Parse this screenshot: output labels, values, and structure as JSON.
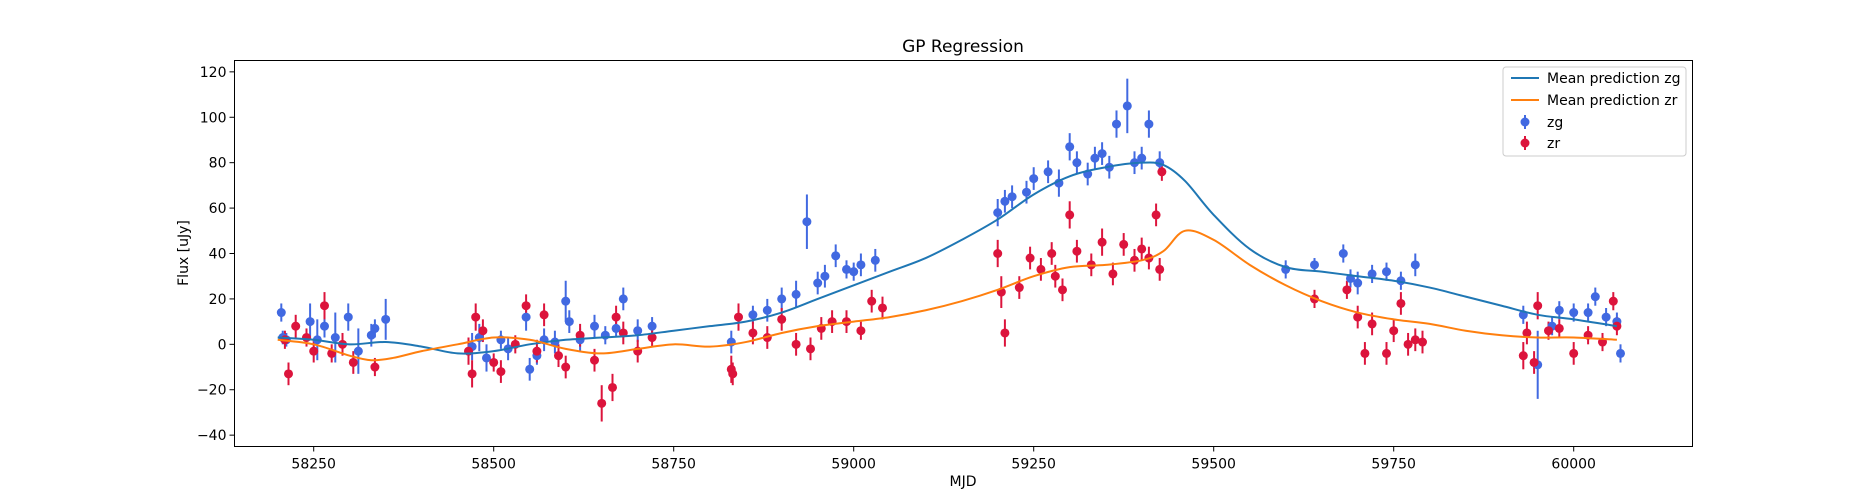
{
  "chart_data": {
    "type": "scatter",
    "title": "GP Regression",
    "xlabel": "MJD",
    "ylabel": "Flux [uJy]",
    "xlim": [
      58140,
      60165
    ],
    "ylim": [
      -45,
      125
    ],
    "xticks": [
      58250,
      58500,
      58750,
      59000,
      59250,
      59500,
      59750,
      60000
    ],
    "yticks": [
      -40,
      -20,
      0,
      20,
      40,
      60,
      80,
      100,
      120
    ],
    "grid": false,
    "legend_position": "top-right",
    "lines": [
      {
        "name": "Mean prediction zg",
        "color": "#1f77b4",
        "x": [
          58200,
          58250,
          58300,
          58350,
          58400,
          58450,
          58500,
          58550,
          58600,
          58650,
          58700,
          58750,
          58800,
          58850,
          58900,
          58950,
          59000,
          59050,
          59100,
          59150,
          59200,
          59250,
          59300,
          59350,
          59400,
          59430,
          59460,
          59500,
          59550,
          59600,
          59650,
          59700,
          59750,
          59800,
          59850,
          59900,
          59950,
          60000,
          60060
        ],
        "y": [
          3,
          2,
          0,
          1,
          -1,
          -4,
          -3,
          0,
          2,
          3,
          4,
          6,
          8,
          10,
          14,
          20,
          26,
          32,
          38,
          46,
          55,
          66,
          74,
          78,
          80,
          79,
          72,
          57,
          42,
          34,
          32,
          30,
          28,
          25,
          21,
          17,
          13,
          11,
          8
        ]
      },
      {
        "name": "Mean prediction zr",
        "color": "#ff7f0e",
        "x": [
          58200,
          58250,
          58300,
          58330,
          58360,
          58400,
          58450,
          58500,
          58550,
          58600,
          58650,
          58700,
          58750,
          58800,
          58850,
          58900,
          58950,
          59000,
          59050,
          59100,
          59150,
          59200,
          59250,
          59300,
          59350,
          59400,
          59430,
          59460,
          59500,
          59550,
          59600,
          59650,
          59700,
          59750,
          59800,
          59850,
          59900,
          59950,
          60000,
          60060
        ],
        "y": [
          2,
          0,
          -5,
          -7,
          -6,
          -3,
          0,
          3,
          2,
          -2,
          -4,
          -2,
          0,
          -1,
          1,
          5,
          8,
          10,
          12,
          15,
          19,
          24,
          30,
          34,
          35,
          37,
          41,
          50,
          46,
          35,
          26,
          19,
          14,
          11,
          9,
          6,
          4,
          3,
          3,
          2
        ]
      }
    ],
    "series": [
      {
        "name": "zg",
        "color": "#4169e1",
        "points": [
          [
            58205,
            14,
            4
          ],
          [
            58207,
            3,
            3
          ],
          [
            58212,
            2,
            3
          ],
          [
            58245,
            10,
            8
          ],
          [
            58255,
            2,
            9
          ],
          [
            58265,
            8,
            5
          ],
          [
            58280,
            3,
            11
          ],
          [
            58298,
            12,
            6
          ],
          [
            58312,
            -3,
            10
          ],
          [
            58330,
            4,
            5
          ],
          [
            58335,
            7,
            4
          ],
          [
            58350,
            11,
            9
          ],
          [
            58470,
            -1,
            6
          ],
          [
            58480,
            3,
            6
          ],
          [
            58490,
            -6,
            6
          ],
          [
            58510,
            2,
            4
          ],
          [
            58520,
            -2,
            5
          ],
          [
            58545,
            12,
            6
          ],
          [
            58550,
            -11,
            5
          ],
          [
            58560,
            -5,
            4
          ],
          [
            58570,
            2,
            5
          ],
          [
            58585,
            1,
            5
          ],
          [
            58600,
            19,
            9
          ],
          [
            58605,
            10,
            5
          ],
          [
            58620,
            2,
            5
          ],
          [
            58640,
            8,
            5
          ],
          [
            58655,
            4,
            4
          ],
          [
            58670,
            7,
            4
          ],
          [
            58680,
            20,
            5
          ],
          [
            58700,
            6,
            5
          ],
          [
            58720,
            8,
            4
          ],
          [
            58830,
            1,
            5
          ],
          [
            58860,
            13,
            4
          ],
          [
            58880,
            15,
            5
          ],
          [
            58900,
            20,
            5
          ],
          [
            58920,
            22,
            6
          ],
          [
            58935,
            54,
            12
          ],
          [
            58950,
            27,
            5
          ],
          [
            58960,
            30,
            5
          ],
          [
            58975,
            39,
            5
          ],
          [
            58990,
            33,
            4
          ],
          [
            59000,
            32,
            4
          ],
          [
            59010,
            35,
            5
          ],
          [
            59030,
            37,
            5
          ],
          [
            59200,
            58,
            6
          ],
          [
            59210,
            63,
            5
          ],
          [
            59220,
            65,
            5
          ],
          [
            59240,
            67,
            5
          ],
          [
            59250,
            73,
            5
          ],
          [
            59270,
            76,
            5
          ],
          [
            59285,
            71,
            6
          ],
          [
            59300,
            87,
            6
          ],
          [
            59310,
            80,
            5
          ],
          [
            59325,
            75,
            5
          ],
          [
            59335,
            82,
            5
          ],
          [
            59345,
            84,
            5
          ],
          [
            59355,
            78,
            5
          ],
          [
            59365,
            97,
            6
          ],
          [
            59380,
            105,
            12
          ],
          [
            59390,
            80,
            5
          ],
          [
            59400,
            82,
            5
          ],
          [
            59410,
            97,
            6
          ],
          [
            59425,
            80,
            5
          ],
          [
            59600,
            33,
            4
          ],
          [
            59640,
            35,
            3
          ],
          [
            59680,
            40,
            4
          ],
          [
            59690,
            29,
            4
          ],
          [
            59700,
            27,
            5
          ],
          [
            59720,
            31,
            4
          ],
          [
            59740,
            32,
            4
          ],
          [
            59760,
            28,
            4
          ],
          [
            59780,
            35,
            5
          ],
          [
            59930,
            13,
            4
          ],
          [
            59950,
            -9,
            15
          ],
          [
            59970,
            8,
            4
          ],
          [
            59980,
            15,
            4
          ],
          [
            60000,
            14,
            4
          ],
          [
            60020,
            14,
            4
          ],
          [
            60030,
            21,
            4
          ],
          [
            60045,
            12,
            4
          ],
          [
            60060,
            10,
            4
          ],
          [
            60065,
            -4,
            4
          ]
        ]
      },
      {
        "name": "zr",
        "color": "#dc143c",
        "points": [
          [
            58210,
            2,
            4
          ],
          [
            58215,
            -13,
            5
          ],
          [
            58225,
            8,
            5
          ],
          [
            58240,
            3,
            4
          ],
          [
            58250,
            -3,
            5
          ],
          [
            58265,
            17,
            6
          ],
          [
            58275,
            -4,
            4
          ],
          [
            58290,
            0,
            5
          ],
          [
            58305,
            -8,
            5
          ],
          [
            58335,
            -10,
            4
          ],
          [
            58465,
            -3,
            6
          ],
          [
            58470,
            -13,
            6
          ],
          [
            58475,
            12,
            6
          ],
          [
            58485,
            6,
            5
          ],
          [
            58500,
            -8,
            4
          ],
          [
            58510,
            -12,
            5
          ],
          [
            58530,
            0,
            4
          ],
          [
            58545,
            17,
            5
          ],
          [
            58560,
            -3,
            5
          ],
          [
            58570,
            13,
            5
          ],
          [
            58590,
            -5,
            5
          ],
          [
            58600,
            -10,
            5
          ],
          [
            58620,
            4,
            5
          ],
          [
            58640,
            -7,
            5
          ],
          [
            58650,
            -26,
            8
          ],
          [
            58665,
            -19,
            6
          ],
          [
            58670,
            12,
            5
          ],
          [
            58680,
            5,
            5
          ],
          [
            58700,
            -3,
            5
          ],
          [
            58720,
            3,
            4
          ],
          [
            58830,
            -11,
            6
          ],
          [
            58832,
            -13,
            5
          ],
          [
            58840,
            12,
            6
          ],
          [
            58860,
            5,
            5
          ],
          [
            58880,
            3,
            5
          ],
          [
            58900,
            11,
            5
          ],
          [
            58920,
            0,
            5
          ],
          [
            58940,
            -2,
            5
          ],
          [
            58955,
            7,
            5
          ],
          [
            58970,
            10,
            5
          ],
          [
            58990,
            10,
            5
          ],
          [
            59010,
            6,
            4
          ],
          [
            59025,
            19,
            5
          ],
          [
            59040,
            16,
            5
          ],
          [
            59200,
            40,
            6
          ],
          [
            59205,
            23,
            7
          ],
          [
            59210,
            5,
            6
          ],
          [
            59230,
            25,
            5
          ],
          [
            59245,
            38,
            5
          ],
          [
            59260,
            33,
            5
          ],
          [
            59275,
            40,
            5
          ],
          [
            59280,
            30,
            5
          ],
          [
            59290,
            24,
            5
          ],
          [
            59300,
            57,
            6
          ],
          [
            59310,
            41,
            5
          ],
          [
            59330,
            35,
            5
          ],
          [
            59345,
            45,
            6
          ],
          [
            59360,
            31,
            5
          ],
          [
            59375,
            44,
            5
          ],
          [
            59390,
            37,
            5
          ],
          [
            59400,
            42,
            5
          ],
          [
            59410,
            38,
            5
          ],
          [
            59420,
            57,
            5
          ],
          [
            59425,
            33,
            5
          ],
          [
            59428,
            76,
            4
          ],
          [
            59640,
            20,
            4
          ],
          [
            59685,
            24,
            4
          ],
          [
            59700,
            12,
            5
          ],
          [
            59710,
            -4,
            5
          ],
          [
            59720,
            9,
            5
          ],
          [
            59740,
            -4,
            5
          ],
          [
            59750,
            6,
            5
          ],
          [
            59760,
            18,
            5
          ],
          [
            59770,
            0,
            5
          ],
          [
            59780,
            2,
            5
          ],
          [
            59790,
            1,
            5
          ],
          [
            59930,
            -5,
            6
          ],
          [
            59935,
            5,
            5
          ],
          [
            59945,
            -8,
            5
          ],
          [
            59950,
            17,
            6
          ],
          [
            59965,
            6,
            4
          ],
          [
            59980,
            7,
            4
          ],
          [
            60000,
            -4,
            5
          ],
          [
            60020,
            4,
            4
          ],
          [
            60040,
            1,
            4
          ],
          [
            60055,
            19,
            4
          ],
          [
            60060,
            8,
            4
          ]
        ]
      }
    ]
  }
}
